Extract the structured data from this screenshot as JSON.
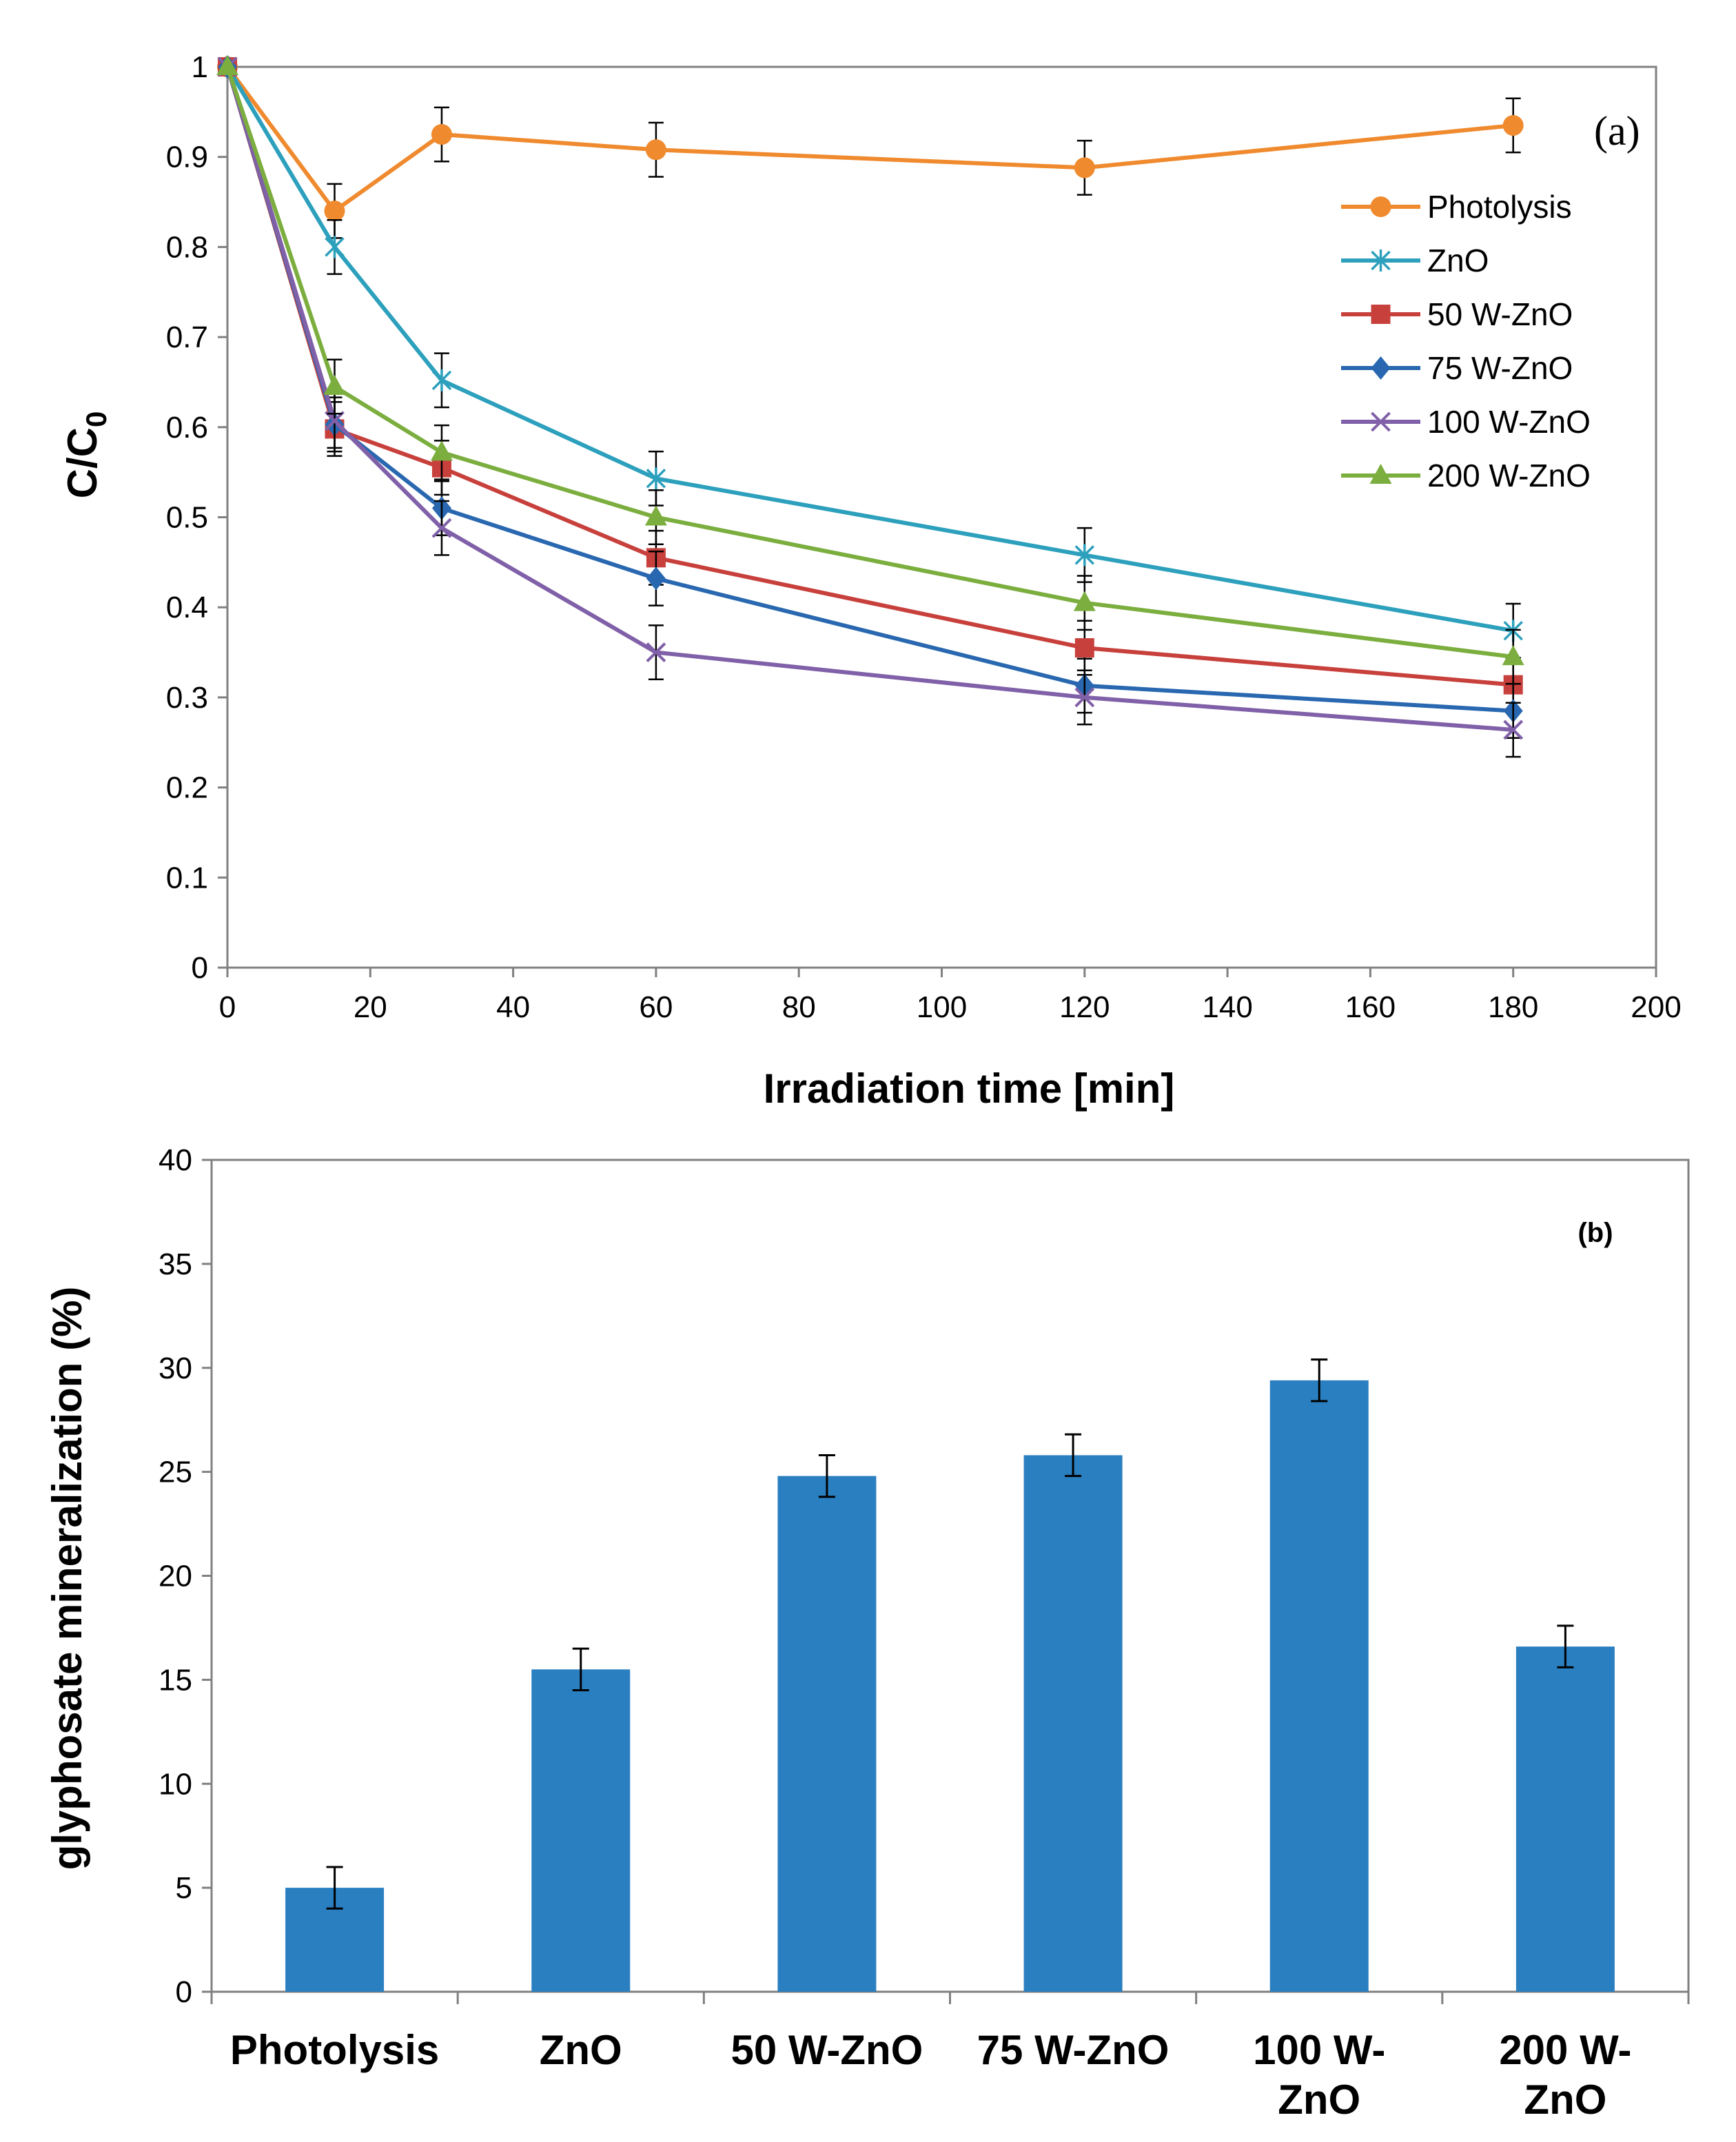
{
  "chart_data": [
    {
      "type": "line",
      "panel_label": "(a)",
      "title": "",
      "xlabel": "Irradiation time [min]",
      "ylabel_main": "C/C",
      "ylabel_sub": "0",
      "xlim": [
        0,
        200
      ],
      "ylim": [
        0,
        1
      ],
      "xticks": [
        0,
        20,
        40,
        60,
        80,
        100,
        120,
        140,
        160,
        180,
        200
      ],
      "yticks": [
        "0",
        "0.1",
        "0.2",
        "0.3",
        "0.4",
        "0.5",
        "0.6",
        "0.7",
        "0.8",
        "0.9",
        "1"
      ],
      "x": [
        0,
        15,
        30,
        60,
        120,
        180
      ],
      "legend_position": "upper-right",
      "series": [
        {
          "name": "Photolysis",
          "color": "#F08A2E",
          "marker": "circle",
          "values": [
            1,
            0.84,
            0.925,
            0.908,
            0.888,
            0.935
          ],
          "err": 0.03
        },
        {
          "name": "ZnO",
          "color": "#2CA0BC",
          "marker": "asterisk",
          "values": [
            1,
            0.8,
            0.652,
            0.543,
            0.458,
            0.374
          ],
          "err": 0.03
        },
        {
          "name": "50 W-ZnO",
          "color": "#C8403C",
          "marker": "square",
          "values": [
            1,
            0.598,
            0.555,
            0.455,
            0.355,
            0.314
          ],
          "err": 0.03
        },
        {
          "name": "75 W-ZnO",
          "color": "#2968B0",
          "marker": "diamond",
          "values": [
            1,
            0.603,
            0.51,
            0.432,
            0.313,
            0.285
          ],
          "err": 0.03
        },
        {
          "name": "100 W-ZnO",
          "color": "#8060A8",
          "marker": "x",
          "values": [
            1,
            0.607,
            0.488,
            0.35,
            0.3,
            0.264
          ],
          "err": 0.03
        },
        {
          "name": "200 W-ZnO",
          "color": "#7BAE3E",
          "marker": "triangle",
          "values": [
            1,
            0.645,
            0.572,
            0.5,
            0.405,
            0.345
          ],
          "err": 0.03
        }
      ]
    },
    {
      "type": "bar",
      "panel_label": "(b)",
      "title": "",
      "xlabel": "",
      "ylabel": "glyphosate mineralization (%)",
      "ylim": [
        0,
        40
      ],
      "yticks": [
        "0",
        "5",
        "10",
        "15",
        "20",
        "25",
        "30",
        "35",
        "40"
      ],
      "bar_color": "#2A7FC1",
      "categories": [
        [
          "Photolysis"
        ],
        [
          "ZnO"
        ],
        [
          "50 W-ZnO"
        ],
        [
          "75 W-ZnO"
        ],
        [
          "100 W-",
          "ZnO"
        ],
        [
          "200 W-",
          "ZnO"
        ]
      ],
      "values": [
        5.0,
        15.5,
        24.8,
        25.8,
        29.4,
        16.6
      ],
      "err": 1.0
    }
  ]
}
